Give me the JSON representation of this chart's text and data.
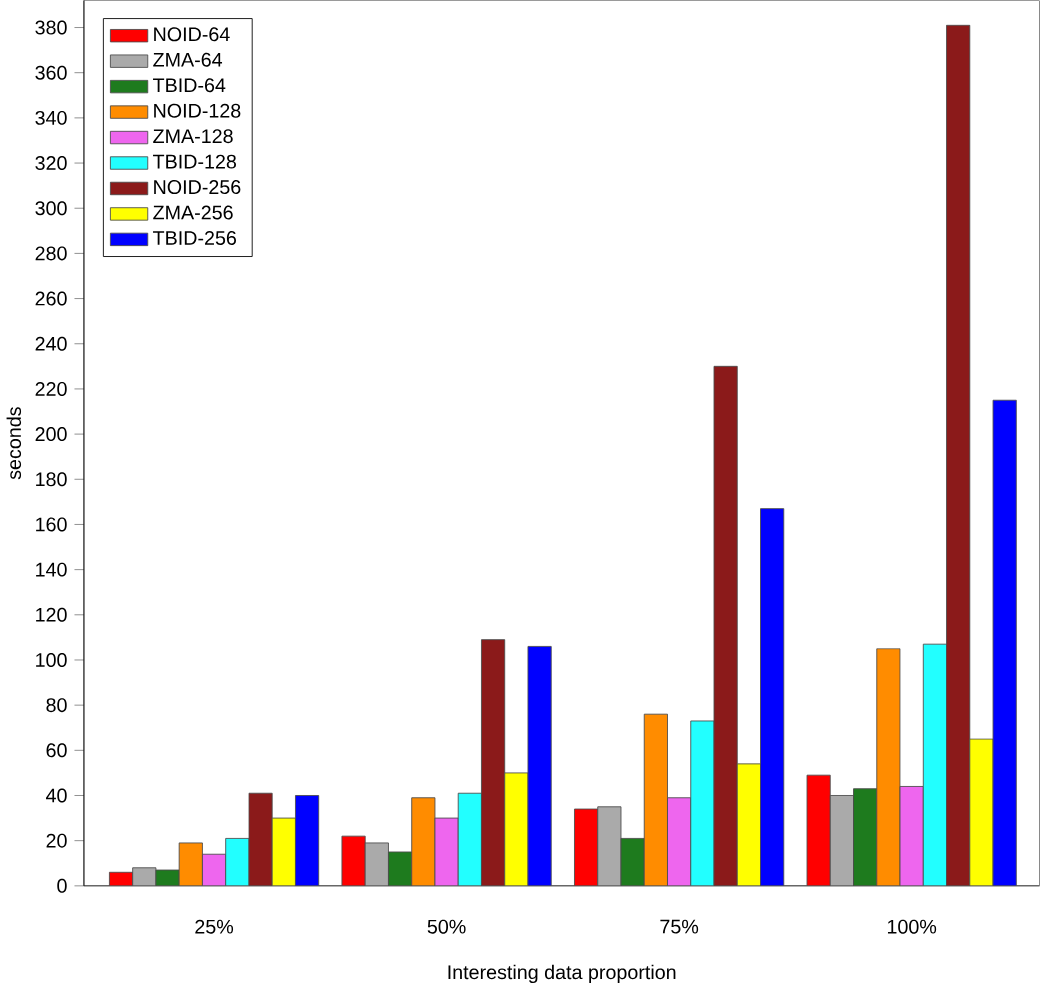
{
  "chart_data": {
    "type": "bar",
    "xlabel": "Interesting data proportion",
    "ylabel": "seconds",
    "categories": [
      "25%",
      "50%",
      "75%",
      "100%"
    ],
    "series": [
      {
        "name": "NOID-64",
        "color": "#ff0000",
        "values": [
          6,
          22,
          34,
          49
        ]
      },
      {
        "name": "ZMA-64",
        "color": "#aaaaaa",
        "values": [
          8,
          19,
          35,
          40
        ]
      },
      {
        "name": "TBID-64",
        "color": "#1e7b1e",
        "values": [
          7,
          15,
          21,
          43
        ]
      },
      {
        "name": "NOID-128",
        "color": "#ff8c00",
        "values": [
          19,
          39,
          76,
          105
        ]
      },
      {
        "name": "ZMA-128",
        "color": "#ee66ee",
        "values": [
          14,
          30,
          39,
          44
        ]
      },
      {
        "name": "TBID-128",
        "color": "#22ffff",
        "values": [
          21,
          41,
          73,
          107
        ]
      },
      {
        "name": "NOID-256",
        "color": "#8b1a1a",
        "values": [
          41,
          109,
          230,
          381
        ]
      },
      {
        "name": "ZMA-256",
        "color": "#ffff00",
        "values": [
          30,
          50,
          54,
          65
        ]
      },
      {
        "name": "TBID-256",
        "color": "#0000ff",
        "values": [
          40,
          106,
          167,
          215
        ]
      }
    ],
    "ylim": [
      0,
      392
    ],
    "yticks": [
      0,
      20,
      40,
      60,
      80,
      100,
      120,
      140,
      160,
      180,
      200,
      220,
      240,
      260,
      280,
      300,
      320,
      340,
      360,
      380
    ],
    "grid": false,
    "legend": "top left"
  }
}
